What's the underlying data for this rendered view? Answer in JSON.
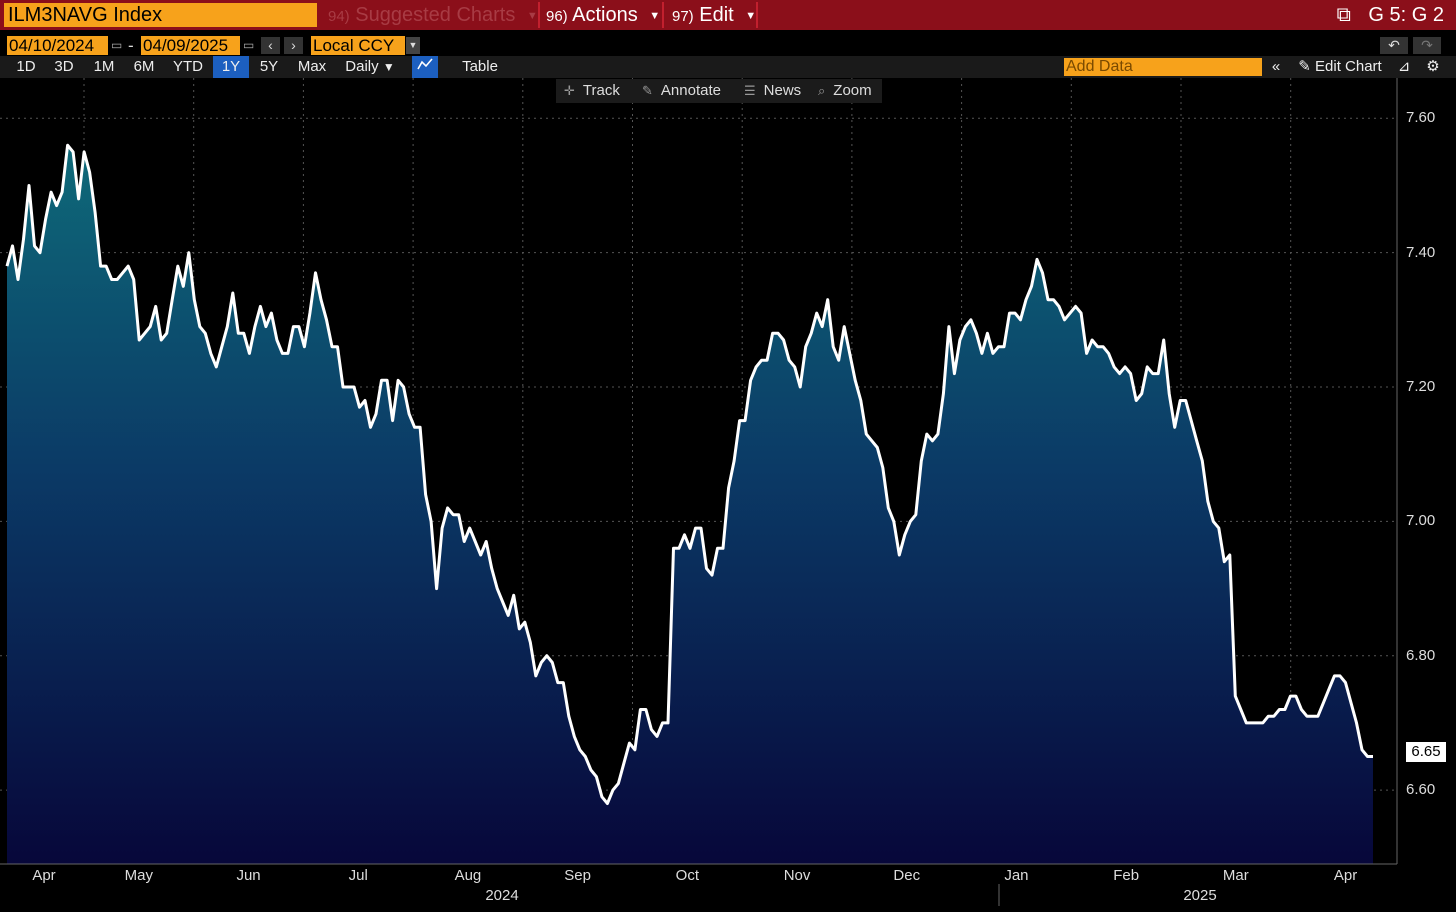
{
  "header": {
    "ticker": "ILM3NAVG Index",
    "suggested_num": "94)",
    "suggested_label": "Suggested Charts",
    "actions_num": "96)",
    "actions_label": "Actions",
    "edit_num": "97)",
    "edit_label": "Edit",
    "screen_id": "G 5: G 2"
  },
  "range": {
    "start": "04/10/2024",
    "dash": "-",
    "end": "04/09/2025",
    "currency": "Local CCY"
  },
  "periods": [
    "1D",
    "3D",
    "1M",
    "6M",
    "YTD",
    "1Y",
    "5Y",
    "Max"
  ],
  "selected_period": "1Y",
  "frequency": "Daily",
  "table_label": "Table",
  "add_data_placeholder": "Add Data",
  "edit_chart_label": "Edit Chart",
  "tools": {
    "track": "Track",
    "annotate": "Annotate",
    "news": "News",
    "zoom": "Zoom"
  },
  "colors": {
    "accent": "#f7a21b",
    "header": "#8b0f1a",
    "selected": "#1c5fc0",
    "line": "#ffffff"
  },
  "chart_data": {
    "type": "area",
    "series": [
      {
        "values": [
          7.38,
          7.41,
          7.36,
          7.42,
          7.5,
          7.41,
          7.4,
          7.45,
          7.49,
          7.47,
          7.49,
          7.56,
          7.55,
          7.48,
          7.55,
          7.52,
          7.46,
          7.38,
          7.38,
          7.36,
          7.36,
          7.37,
          7.38,
          7.36,
          7.27,
          7.28,
          7.29,
          7.32,
          7.27,
          7.28,
          7.33,
          7.38,
          7.35,
          7.4,
          7.33,
          7.29,
          7.28,
          7.25,
          7.23,
          7.26,
          7.29,
          7.34,
          7.28,
          7.28,
          7.25,
          7.29,
          7.32,
          7.29,
          7.31,
          7.27,
          7.25,
          7.25,
          7.29,
          7.29,
          7.26,
          7.31,
          7.37,
          7.33,
          7.3,
          7.26,
          7.26,
          7.2,
          7.2,
          7.2,
          7.17,
          7.18,
          7.14,
          7.16,
          7.21,
          7.21,
          7.15,
          7.21,
          7.2,
          7.16,
          7.14,
          7.14,
          7.04,
          7.0,
          6.9,
          6.99,
          7.02,
          7.01,
          7.01,
          6.97,
          6.99,
          6.97,
          6.95,
          6.97,
          6.93,
          6.9,
          6.88,
          6.86,
          6.89,
          6.84,
          6.85,
          6.82,
          6.77,
          6.79,
          6.8,
          6.79,
          6.76,
          6.76,
          6.71,
          6.68,
          6.66,
          6.65,
          6.63,
          6.62,
          6.59,
          6.58,
          6.6,
          6.61,
          6.64,
          6.67,
          6.66,
          6.72,
          6.72,
          6.69,
          6.68,
          6.7,
          6.7,
          6.96,
          6.96,
          6.98,
          6.96,
          6.99,
          6.99,
          6.93,
          6.92,
          6.96,
          6.96,
          7.05,
          7.09,
          7.15,
          7.15,
          7.21,
          7.23,
          7.24,
          7.24,
          7.28,
          7.28,
          7.27,
          7.24,
          7.23,
          7.2,
          7.26,
          7.28,
          7.31,
          7.29,
          7.33,
          7.26,
          7.24,
          7.29,
          7.25,
          7.21,
          7.18,
          7.13,
          7.12,
          7.11,
          7.08,
          7.02,
          7.0,
          6.95,
          6.98,
          7.0,
          7.01,
          7.09,
          7.13,
          7.12,
          7.13,
          7.19,
          7.29,
          7.22,
          7.27,
          7.29,
          7.3,
          7.28,
          7.25,
          7.28,
          7.25,
          7.26,
          7.26,
          7.31,
          7.31,
          7.3,
          7.33,
          7.35,
          7.39,
          7.37,
          7.33,
          7.33,
          7.32,
          7.3,
          7.31,
          7.32,
          7.31,
          7.25,
          7.27,
          7.26,
          7.26,
          7.25,
          7.23,
          7.22,
          7.23,
          7.22,
          7.18,
          7.19,
          7.23,
          7.22,
          7.22,
          7.27,
          7.19,
          7.14,
          7.18,
          7.18,
          7.15,
          7.12,
          7.09,
          7.03,
          7.0,
          6.99,
          6.94,
          6.95,
          6.74,
          6.72,
          6.7,
          6.7,
          6.7,
          6.7,
          6.71,
          6.71,
          6.72,
          6.72,
          6.74,
          6.74,
          6.72,
          6.71,
          6.71,
          6.71,
          6.73,
          6.75,
          6.77,
          6.77,
          6.76,
          6.73,
          6.7,
          6.66,
          6.65,
          6.65
        ]
      }
    ],
    "ylim": [
      6.49,
      7.66
    ],
    "yticks": [
      "7.60",
      "7.40",
      "7.20",
      "7.00",
      "6.80",
      "6.60"
    ],
    "ytick_values": [
      7.6,
      7.4,
      7.2,
      7.0,
      6.8,
      6.6
    ],
    "xticks": [
      "Apr",
      "May",
      "Jun",
      "Jul",
      "Aug",
      "Sep",
      "Oct",
      "Nov",
      "Dec",
      "Jan",
      "Feb",
      "Mar",
      "Apr"
    ],
    "years": [
      "2024",
      "2025"
    ],
    "last_value": "6.65",
    "grid": true
  }
}
